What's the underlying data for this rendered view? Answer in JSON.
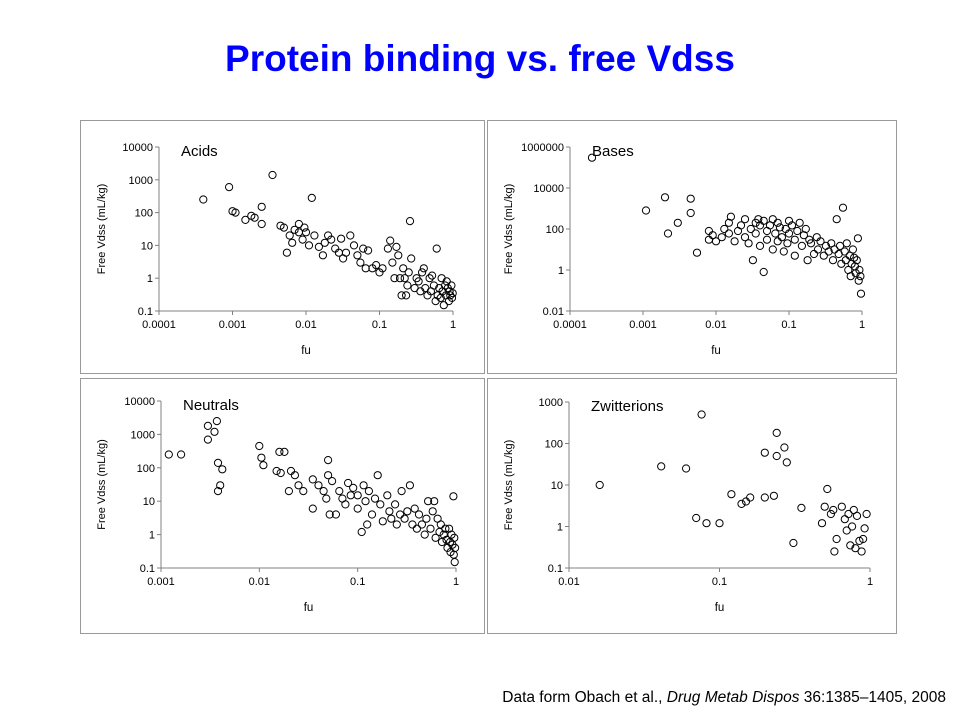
{
  "slide": {
    "title": "Protein binding vs. free Vdss",
    "citation": {
      "prefix": "Data form Obach et al., ",
      "journal": "Drug Metab Dispos",
      "suffix": " 36:1385–1405, 2008"
    }
  },
  "colors": {
    "title": "#0000ff",
    "marker_stroke": "#000000",
    "panel_border": "#9a9a9a"
  },
  "chart_data": [
    {
      "type": "scatter",
      "title": "Acids",
      "xlabel": "fu",
      "ylabel": "Free Vdss (mL/kg)",
      "xscale": "log",
      "yscale": "log",
      "xlim": [
        0.0001,
        1
      ],
      "ylim": [
        0.1,
        10000
      ],
      "xticks": [
        "0.0001",
        "0.001",
        "0.01",
        "0.1",
        "1"
      ],
      "yticks": [
        "0.1",
        "1",
        "10",
        "100",
        "1000",
        "10000"
      ],
      "grid": false,
      "legend": "none",
      "points": [
        [
          0.0004,
          250
        ],
        [
          0.0009,
          600
        ],
        [
          0.001,
          110
        ],
        [
          0.0011,
          100
        ],
        [
          0.0015,
          60
        ],
        [
          0.0018,
          80
        ],
        [
          0.002,
          70
        ],
        [
          0.0025,
          150
        ],
        [
          0.0025,
          45
        ],
        [
          0.0035,
          1400
        ],
        [
          0.0045,
          40
        ],
        [
          0.005,
          35
        ],
        [
          0.0055,
          6
        ],
        [
          0.006,
          20
        ],
        [
          0.0065,
          12
        ],
        [
          0.007,
          30
        ],
        [
          0.008,
          45
        ],
        [
          0.008,
          25
        ],
        [
          0.009,
          15
        ],
        [
          0.0095,
          35
        ],
        [
          0.01,
          25
        ],
        [
          0.011,
          10
        ],
        [
          0.012,
          280
        ],
        [
          0.013,
          20
        ],
        [
          0.015,
          9
        ],
        [
          0.017,
          5
        ],
        [
          0.018,
          12
        ],
        [
          0.02,
          20
        ],
        [
          0.022,
          15
        ],
        [
          0.025,
          8
        ],
        [
          0.028,
          6
        ],
        [
          0.03,
          16
        ],
        [
          0.032,
          4
        ],
        [
          0.035,
          6
        ],
        [
          0.04,
          20
        ],
        [
          0.045,
          10
        ],
        [
          0.05,
          5
        ],
        [
          0.055,
          3
        ],
        [
          0.06,
          8
        ],
        [
          0.065,
          2
        ],
        [
          0.07,
          7
        ],
        [
          0.08,
          2
        ],
        [
          0.09,
          2.5
        ],
        [
          0.1,
          1.5
        ],
        [
          0.11,
          2
        ],
        [
          0.13,
          8
        ],
        [
          0.14,
          14
        ],
        [
          0.15,
          3
        ],
        [
          0.16,
          1
        ],
        [
          0.17,
          9
        ],
        [
          0.18,
          5
        ],
        [
          0.19,
          1
        ],
        [
          0.2,
          0.3
        ],
        [
          0.21,
          2
        ],
        [
          0.22,
          1
        ],
        [
          0.23,
          0.3
        ],
        [
          0.24,
          0.6
        ],
        [
          0.25,
          1.5
        ],
        [
          0.26,
          55
        ],
        [
          0.27,
          4
        ],
        [
          0.3,
          0.5
        ],
        [
          0.32,
          1
        ],
        [
          0.34,
          0.8
        ],
        [
          0.36,
          0.4
        ],
        [
          0.38,
          1.5
        ],
        [
          0.4,
          2
        ],
        [
          0.42,
          0.5
        ],
        [
          0.45,
          0.3
        ],
        [
          0.48,
          1
        ],
        [
          0.5,
          0.4
        ],
        [
          0.52,
          1.2
        ],
        [
          0.55,
          0.6
        ],
        [
          0.58,
          0.2
        ],
        [
          0.6,
          8
        ],
        [
          0.62,
          0.3
        ],
        [
          0.65,
          0.5
        ],
        [
          0.68,
          0.25
        ],
        [
          0.7,
          1
        ],
        [
          0.72,
          0.4
        ],
        [
          0.75,
          0.15
        ],
        [
          0.78,
          0.6
        ],
        [
          0.8,
          0.3
        ],
        [
          0.82,
          0.8
        ],
        [
          0.85,
          0.5
        ],
        [
          0.88,
          0.2
        ],
        [
          0.9,
          0.4
        ],
        [
          0.92,
          0.3
        ],
        [
          0.95,
          0.6
        ],
        [
          0.97,
          0.25
        ],
        [
          0.99,
          0.35
        ]
      ]
    },
    {
      "type": "scatter",
      "title": "Bases",
      "xlabel": "fu",
      "ylabel": "Free Vdss (mL/kg)",
      "xscale": "log",
      "yscale": "log",
      "xlim": [
        0.0001,
        1
      ],
      "ylim": [
        0.01,
        1000000
      ],
      "xticks": [
        "0.0001",
        "0.001",
        "0.01",
        "0.1",
        "1"
      ],
      "yticks": [
        "0.01",
        "1",
        "100",
        "10000",
        "1000000"
      ],
      "grid": false,
      "legend": "none",
      "points": [
        [
          0.0002,
          300000
        ],
        [
          0.0011,
          800
        ],
        [
          0.002,
          3500
        ],
        [
          0.0022,
          60
        ],
        [
          0.003,
          200
        ],
        [
          0.0045,
          3000
        ],
        [
          0.0045,
          600
        ],
        [
          0.0055,
          7
        ],
        [
          0.008,
          80
        ],
        [
          0.008,
          30
        ],
        [
          0.009,
          50
        ],
        [
          0.01,
          25
        ],
        [
          0.012,
          40
        ],
        [
          0.013,
          100
        ],
        [
          0.015,
          200
        ],
        [
          0.015,
          60
        ],
        [
          0.016,
          400
        ],
        [
          0.018,
          25
        ],
        [
          0.02,
          80
        ],
        [
          0.022,
          150
        ],
        [
          0.025,
          300
        ],
        [
          0.025,
          40
        ],
        [
          0.028,
          20
        ],
        [
          0.03,
          100
        ],
        [
          0.032,
          3
        ],
        [
          0.035,
          200
        ],
        [
          0.035,
          60
        ],
        [
          0.038,
          300
        ],
        [
          0.04,
          15
        ],
        [
          0.04,
          150
        ],
        [
          0.045,
          0.8
        ],
        [
          0.045,
          250
        ],
        [
          0.05,
          80
        ],
        [
          0.05,
          30
        ],
        [
          0.055,
          150
        ],
        [
          0.06,
          10
        ],
        [
          0.06,
          300
        ],
        [
          0.065,
          60
        ],
        [
          0.07,
          200
        ],
        [
          0.07,
          25
        ],
        [
          0.075,
          120
        ],
        [
          0.08,
          40
        ],
        [
          0.085,
          8
        ],
        [
          0.09,
          100
        ],
        [
          0.095,
          20
        ],
        [
          0.1,
          250
        ],
        [
          0.1,
          60
        ],
        [
          0.11,
          150
        ],
        [
          0.12,
          5
        ],
        [
          0.12,
          30
        ],
        [
          0.13,
          80
        ],
        [
          0.14,
          200
        ],
        [
          0.15,
          15
        ],
        [
          0.16,
          50
        ],
        [
          0.17,
          100
        ],
        [
          0.18,
          3
        ],
        [
          0.19,
          30
        ],
        [
          0.2,
          20
        ],
        [
          0.22,
          6
        ],
        [
          0.24,
          40
        ],
        [
          0.25,
          10
        ],
        [
          0.27,
          25
        ],
        [
          0.3,
          5
        ],
        [
          0.32,
          15
        ],
        [
          0.35,
          8
        ],
        [
          0.38,
          20
        ],
        [
          0.4,
          3
        ],
        [
          0.42,
          10
        ],
        [
          0.45,
          300
        ],
        [
          0.48,
          6
        ],
        [
          0.5,
          15
        ],
        [
          0.52,
          2
        ],
        [
          0.55,
          1100
        ],
        [
          0.58,
          8
        ],
        [
          0.6,
          3
        ],
        [
          0.62,
          20
        ],
        [
          0.65,
          1
        ],
        [
          0.68,
          5
        ],
        [
          0.7,
          0.5
        ],
        [
          0.72,
          2
        ],
        [
          0.75,
          10
        ],
        [
          0.78,
          4
        ],
        [
          0.8,
          1.5
        ],
        [
          0.82,
          0.7
        ],
        [
          0.85,
          3
        ],
        [
          0.88,
          35
        ],
        [
          0.9,
          0.3
        ],
        [
          0.92,
          1
        ],
        [
          0.95,
          0.5
        ],
        [
          0.97,
          0.07
        ]
      ]
    },
    {
      "type": "scatter",
      "title": "Neutrals",
      "xlabel": "fu",
      "ylabel": "Free Vdss (mL/kg)",
      "xscale": "log",
      "yscale": "log",
      "xlim": [
        0.001,
        1
      ],
      "ylim": [
        0.1,
        10000
      ],
      "xticks": [
        "0.001",
        "0.01",
        "0.1",
        "1"
      ],
      "yticks": [
        "0.1",
        "1",
        "10",
        "100",
        "1000",
        "10000"
      ],
      "grid": false,
      "legend": "none",
      "points": [
        [
          0.0012,
          250
        ],
        [
          0.0016,
          250
        ],
        [
          0.003,
          1800
        ],
        [
          0.003,
          700
        ],
        [
          0.0035,
          1200
        ],
        [
          0.0037,
          2500
        ],
        [
          0.0038,
          140
        ],
        [
          0.0038,
          20
        ],
        [
          0.004,
          30
        ],
        [
          0.0042,
          90
        ],
        [
          0.01,
          450
        ],
        [
          0.0105,
          200
        ],
        [
          0.011,
          120
        ],
        [
          0.015,
          80
        ],
        [
          0.016,
          300
        ],
        [
          0.0165,
          70
        ],
        [
          0.018,
          300
        ],
        [
          0.02,
          20
        ],
        [
          0.021,
          80
        ],
        [
          0.023,
          60
        ],
        [
          0.025,
          30
        ],
        [
          0.028,
          20
        ],
        [
          0.035,
          6
        ],
        [
          0.035,
          45
        ],
        [
          0.04,
          30
        ],
        [
          0.045,
          20
        ],
        [
          0.048,
          12
        ],
        [
          0.05,
          170
        ],
        [
          0.05,
          60
        ],
        [
          0.052,
          4
        ],
        [
          0.055,
          40
        ],
        [
          0.06,
          4
        ],
        [
          0.065,
          20
        ],
        [
          0.07,
          12
        ],
        [
          0.075,
          8
        ],
        [
          0.08,
          35
        ],
        [
          0.085,
          15
        ],
        [
          0.09,
          25
        ],
        [
          0.1,
          6
        ],
        [
          0.1,
          15
        ],
        [
          0.11,
          1.2
        ],
        [
          0.115,
          30
        ],
        [
          0.12,
          10
        ],
        [
          0.125,
          2
        ],
        [
          0.13,
          20
        ],
        [
          0.14,
          4
        ],
        [
          0.15,
          12
        ],
        [
          0.16,
          60
        ],
        [
          0.17,
          8
        ],
        [
          0.18,
          2.5
        ],
        [
          0.2,
          15
        ],
        [
          0.21,
          5
        ],
        [
          0.22,
          3
        ],
        [
          0.24,
          8
        ],
        [
          0.25,
          2
        ],
        [
          0.27,
          4
        ],
        [
          0.28,
          20
        ],
        [
          0.3,
          3
        ],
        [
          0.32,
          5
        ],
        [
          0.34,
          30
        ],
        [
          0.36,
          2
        ],
        [
          0.38,
          6
        ],
        [
          0.4,
          1.5
        ],
        [
          0.42,
          4
        ],
        [
          0.45,
          2
        ],
        [
          0.48,
          1
        ],
        [
          0.5,
          3
        ],
        [
          0.52,
          10
        ],
        [
          0.55,
          1.5
        ],
        [
          0.58,
          5
        ],
        [
          0.6,
          10
        ],
        [
          0.62,
          0.8
        ],
        [
          0.65,
          3
        ],
        [
          0.68,
          1.2
        ],
        [
          0.7,
          2
        ],
        [
          0.72,
          0.6
        ],
        [
          0.75,
          1
        ],
        [
          0.78,
          1.5
        ],
        [
          0.8,
          0.7
        ],
        [
          0.82,
          0.4
        ],
        [
          0.85,
          1.5
        ],
        [
          0.87,
          0.6
        ],
        [
          0.88,
          0.3
        ],
        [
          0.9,
          1
        ],
        [
          0.92,
          0.5
        ],
        [
          0.94,
          14
        ],
        [
          0.95,
          0.25
        ],
        [
          0.96,
          0.8
        ],
        [
          0.97,
          0.15
        ],
        [
          0.98,
          0.4
        ]
      ]
    },
    {
      "type": "scatter",
      "title": "Zwitterions",
      "xlabel": "fu",
      "ylabel": "Free Vdss (mL/kg)",
      "xscale": "log",
      "yscale": "log",
      "xlim": [
        0.01,
        1
      ],
      "ylim": [
        0.1,
        1000
      ],
      "xticks": [
        "0.01",
        "0.1",
        "1"
      ],
      "yticks": [
        "0.1",
        "1",
        "10",
        "100",
        "1000"
      ],
      "grid": false,
      "legend": "none",
      "points": [
        [
          0.016,
          10
        ],
        [
          0.041,
          28
        ],
        [
          0.06,
          25
        ],
        [
          0.07,
          1.6
        ],
        [
          0.076,
          500
        ],
        [
          0.082,
          1.2
        ],
        [
          0.1,
          1.2
        ],
        [
          0.12,
          6
        ],
        [
          0.14,
          3.5
        ],
        [
          0.15,
          4
        ],
        [
          0.16,
          5
        ],
        [
          0.2,
          60
        ],
        [
          0.2,
          5
        ],
        [
          0.23,
          5.5
        ],
        [
          0.24,
          180
        ],
        [
          0.24,
          50
        ],
        [
          0.27,
          80
        ],
        [
          0.28,
          35
        ],
        [
          0.31,
          0.4
        ],
        [
          0.35,
          2.8
        ],
        [
          0.48,
          1.2
        ],
        [
          0.5,
          3
        ],
        [
          0.52,
          8
        ],
        [
          0.55,
          2
        ],
        [
          0.57,
          2.5
        ],
        [
          0.58,
          0.25
        ],
        [
          0.6,
          0.5
        ],
        [
          0.65,
          3
        ],
        [
          0.68,
          1.5
        ],
        [
          0.7,
          0.8
        ],
        [
          0.72,
          2
        ],
        [
          0.74,
          0.35
        ],
        [
          0.76,
          1
        ],
        [
          0.78,
          2.5
        ],
        [
          0.8,
          0.3
        ],
        [
          0.82,
          1.8
        ],
        [
          0.85,
          0.45
        ],
        [
          0.88,
          0.25
        ],
        [
          0.9,
          0.5
        ],
        [
          0.92,
          0.9
        ],
        [
          0.95,
          2
        ]
      ]
    }
  ]
}
